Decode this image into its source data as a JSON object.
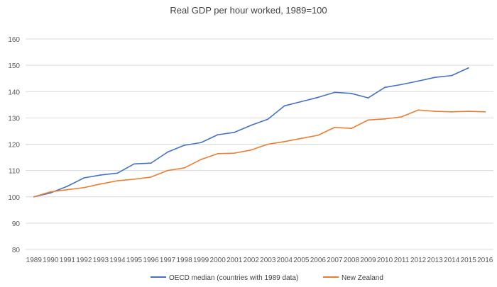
{
  "chart_data": {
    "type": "line",
    "title": "Real GDP per hour worked,  1989=100",
    "xlabel": "",
    "ylabel": "",
    "ylim": [
      80,
      160
    ],
    "ytick_step": 10,
    "yticks": [
      "80",
      "90",
      "100",
      "110",
      "120",
      "130",
      "140",
      "150",
      "160"
    ],
    "grid": true,
    "legend_position": "bottom",
    "categories": [
      "1989",
      "1990",
      "1991",
      "1992",
      "1993",
      "1994",
      "1995",
      "1996",
      "1997",
      "1998",
      "1999",
      "2000",
      "2001",
      "2002",
      "2003",
      "2004",
      "2005",
      "2006",
      "2007",
      "2008",
      "2009",
      "2010",
      "2011",
      "2012",
      "2013",
      "2014",
      "2015",
      "2016"
    ],
    "series": [
      {
        "name": "OECD median (countries with 1989 data)",
        "color": "#4472c4",
        "values": [
          100,
          101.5,
          104,
          107.2,
          108.3,
          109,
          112.5,
          112.8,
          117,
          119.6,
          120.6,
          123.6,
          124.5,
          127.2,
          129.5,
          134.6,
          136.2,
          137.8,
          139.7,
          139.3,
          137.6,
          141.6,
          142.7,
          144,
          145.4,
          146.1,
          149,
          null
        ]
      },
      {
        "name": "New Zealand",
        "color": "#ed7d31",
        "values": [
          100,
          101.9,
          102.7,
          103.5,
          104.9,
          106.1,
          106.7,
          107.5,
          110,
          111,
          114.2,
          116.4,
          116.6,
          117.8,
          120,
          121,
          122.2,
          123.4,
          126.4,
          126,
          129.2,
          129.6,
          130.4,
          133,
          132.5,
          132.3,
          132.5,
          132.3
        ]
      }
    ]
  }
}
